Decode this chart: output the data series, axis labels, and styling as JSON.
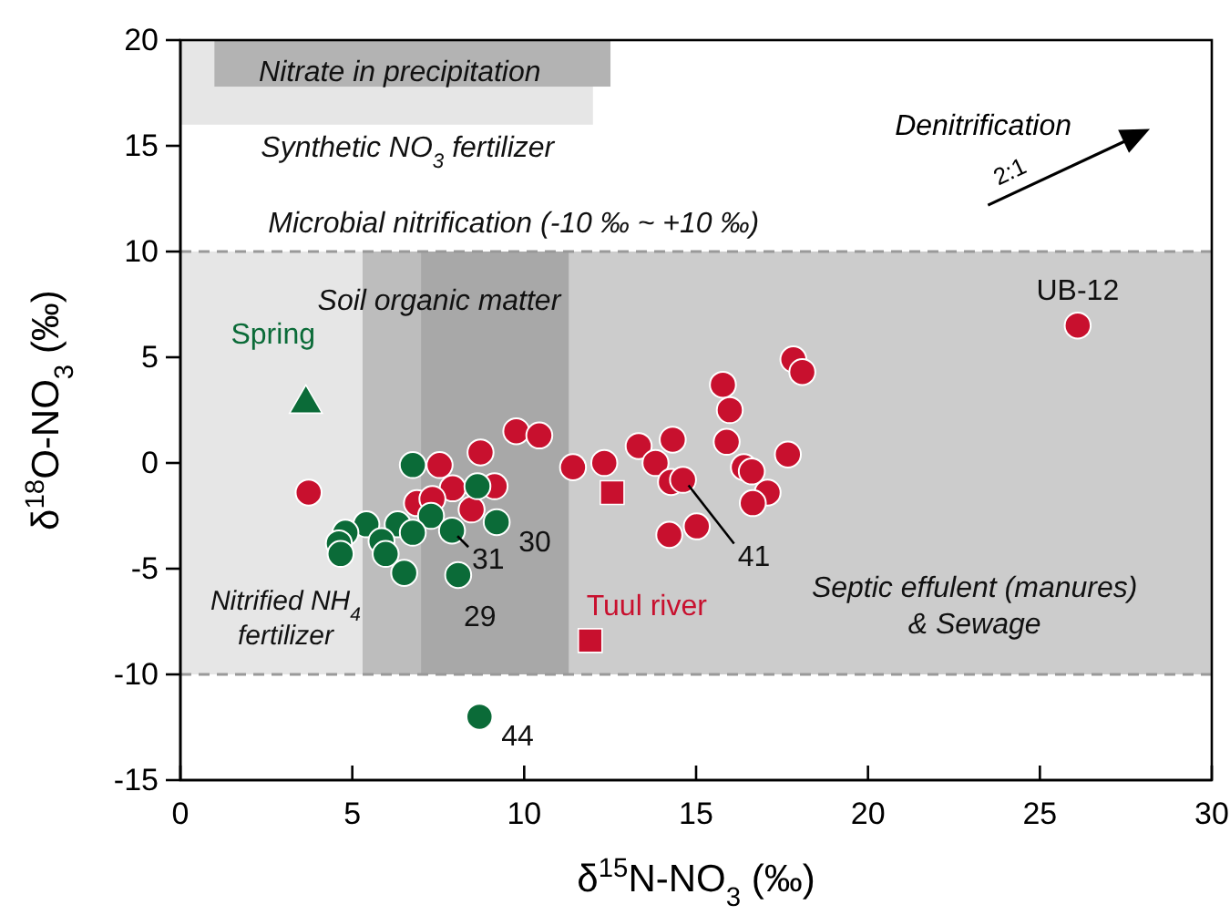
{
  "chart_data": {
    "type": "scatter",
    "xlabel": "δ$^{15}$N-NO$_{3}$ (‰)",
    "ylabel": "δ$^{18}$O-NO$_{3}$ (‰)",
    "xlim": [
      0,
      30
    ],
    "ylim": [
      -15,
      20
    ],
    "xticks": [
      0,
      5,
      10,
      15,
      20,
      25,
      30
    ],
    "yticks": [
      -15,
      -10,
      -5,
      0,
      5,
      10,
      15,
      20
    ],
    "grid": false,
    "legend": false,
    "marker": "circle",
    "bands": [
      {
        "axis": "y",
        "from": -10,
        "to": 10,
        "color": "#cccccc",
        "label": "Microbial nitrification (-10 ‰ ~ +10 ‰)"
      },
      {
        "axis": "x",
        "from": 0,
        "to": 5.3,
        "color": "#e6e6e6",
        "label": "Nitrified NH$_{4}$\nfertilizer"
      },
      {
        "axis": "x",
        "from": 5.3,
        "to": 11.3,
        "color": "#bdbdbd",
        "label": "Soil organic matter"
      },
      {
        "axis": "x",
        "from": 7,
        "to": 11.3,
        "color": "#a8a8a8",
        "label": null
      },
      {
        "axis": "x",
        "from": 11.3,
        "to": 30,
        "color": "#cccccc",
        "label": "Septic effulent (manures)\n& Sewage"
      },
      {
        "axis": "y",
        "from": 16,
        "to": 20,
        "color": "#e6e6e6",
        "label": "Synthetic NO$_{3}$ fertilizer"
      },
      {
        "axis": "y",
        "from": 17.8,
        "to": 20,
        "color": "#b3b3b3",
        "label": "Nitrate in precipitation"
      }
    ],
    "ref_lines": [
      {
        "axis": "y",
        "value": 10,
        "color": "#999999",
        "line_style": "dashed"
      },
      {
        "axis": "y",
        "value": -10,
        "color": "#999999",
        "line_style": "dashed"
      }
    ],
    "series": [
      {
        "color": "#c8102e",
        "x": [
          3.73,
          9.77,
          10.44,
          7.54,
          8.73,
          7.92,
          9.14,
          6.88,
          7.33,
          8.47,
          11.42,
          12.33,
          13.33,
          14.32,
          13.82,
          14.27,
          14.62,
          14.22,
          15.02,
          15.78,
          15.98,
          15.89,
          16.39,
          16.62,
          17.08,
          16.65,
          17.67,
          17.83,
          18.09,
          26.1
        ],
        "values": [
          -1.4,
          1.5,
          1.3,
          -0.1,
          0.5,
          -1.2,
          -1.1,
          -1.9,
          -1.7,
          -2.2,
          -0.2,
          0,
          0.8,
          1.1,
          0,
          -0.9,
          -0.8,
          -3.4,
          -3,
          3.7,
          2.5,
          1,
          -0.2,
          -0.4,
          -1.4,
          -1.9,
          0.4,
          4.9,
          4.3,
          6.5
        ]
      },
      {
        "color": "#0b6b38",
        "x": [
          6.76,
          8.64,
          7.29,
          6.32,
          6.76,
          5.41,
          5.85,
          4.8,
          4.61,
          4.66,
          5.97,
          6.51,
          7.9,
          9.2,
          8.08,
          8.7
        ],
        "values": [
          -0.1,
          -1.1,
          -2.5,
          -2.9,
          -3.3,
          -2.9,
          -3.7,
          -3.3,
          -3.8,
          -4.3,
          -4.3,
          -5.2,
          -3.2,
          -2.8,
          -5.3,
          -12
        ]
      },
      {
        "name": "Spring",
        "color": "#0b6b38",
        "marker": "triangle",
        "x": [
          3.65
        ],
        "values": [
          2.8
        ]
      },
      {
        "name": "Tuul river",
        "color": "#c8102e",
        "marker": "square",
        "x": [
          12.56,
          11.92
        ],
        "values": [
          -1.4,
          -8.4
        ]
      }
    ],
    "annotations": [
      "Denitrification",
      "2:1",
      {
        "text": "UB-12",
        "x": 26.1,
        "y": 6.5
      },
      {
        "text": "30",
        "x": 9.2,
        "y": -2.8
      },
      {
        "text": "31",
        "x": 7.9,
        "y": -3.2
      },
      {
        "text": "29",
        "x": 8.08,
        "y": -5.3
      },
      {
        "text": "41",
        "x": 14.62,
        "y": -0.8
      },
      {
        "text": "44",
        "x": 8.7,
        "y": -12
      }
    ]
  }
}
